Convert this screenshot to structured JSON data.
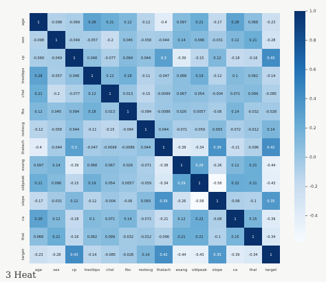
{
  "figure": {
    "caption": "3   Heat"
  },
  "colors": {
    "low": "#f7fbff",
    "high": "#08306b",
    "background": "#f7f7f5"
  },
  "chart_data": {
    "type": "heatmap",
    "title": "",
    "xlabel": "",
    "ylabel": "",
    "categories": [
      "age",
      "sex",
      "cp",
      "trestbps",
      "chol",
      "fbs",
      "restecg",
      "thalach",
      "exang",
      "oldpeak",
      "slope",
      "ca",
      "thal",
      "target"
    ],
    "row_labels": [
      "age",
      "sex",
      "cp",
      "trestbps",
      "chol",
      "fbs",
      "restecg",
      "thalach",
      "exang",
      "oldpeak",
      "slope",
      "ca",
      "thal",
      "target"
    ],
    "matrix": [
      [
        1,
        -0.098,
        -0.069,
        0.28,
        0.21,
        0.12,
        -0.12,
        -0.4,
        0.097,
        0.21,
        -0.17,
        0.28,
        0.068,
        -0.23
      ],
      [
        -0.098,
        1,
        -0.049,
        -0.057,
        -0.2,
        0.045,
        -0.058,
        -0.044,
        0.14,
        0.096,
        -0.031,
        0.12,
        0.21,
        -0.28
      ],
      [
        -0.069,
        -0.049,
        1,
        0.048,
        -0.077,
        0.094,
        0.044,
        0.3,
        -0.39,
        -0.15,
        0.12,
        -0.18,
        -0.16,
        0.43
      ],
      [
        0.28,
        -0.057,
        0.048,
        1,
        0.12,
        0.18,
        -0.11,
        -0.047,
        0.068,
        0.19,
        -0.12,
        0.1,
        0.062,
        -0.14
      ],
      [
        0.21,
        -0.2,
        -0.077,
        0.12,
        1,
        0.013,
        -0.15,
        -0.0099,
        0.067,
        0.054,
        -0.004,
        0.071,
        0.099,
        -0.085
      ],
      [
        0.12,
        0.045,
        0.094,
        0.18,
        0.013,
        1,
        -0.084,
        -0.0086,
        0.026,
        0.0057,
        -0.06,
        0.14,
        -0.032,
        -0.028
      ],
      [
        -0.12,
        -0.058,
        0.044,
        -0.11,
        -0.15,
        -0.084,
        1,
        0.044,
        -0.071,
        -0.059,
        0.093,
        -0.072,
        -0.012,
        0.14
      ],
      [
        -0.4,
        -0.044,
        0.3,
        -0.047,
        -0.0099,
        -0.0086,
        0.044,
        1,
        -0.38,
        -0.34,
        0.39,
        -0.21,
        -0.096,
        0.42
      ],
      [
        0.097,
        0.14,
        -0.39,
        0.068,
        0.067,
        0.026,
        -0.071,
        -0.38,
        1,
        0.29,
        -0.26,
        0.12,
        0.21,
        -0.44
      ],
      [
        0.21,
        0.096,
        -0.15,
        0.19,
        0.054,
        0.0057,
        -0.059,
        -0.34,
        0.29,
        1,
        -0.58,
        0.22,
        0.21,
        -0.43
      ],
      [
        -0.17,
        -0.031,
        0.12,
        -0.12,
        -0.004,
        -0.06,
        0.093,
        0.39,
        -0.26,
        -0.58,
        1,
        -0.08,
        -0.1,
        0.35
      ],
      [
        0.28,
        0.12,
        -0.18,
        0.1,
        0.071,
        0.14,
        -0.072,
        -0.21,
        0.12,
        0.22,
        -0.08,
        1,
        0.15,
        -0.39
      ],
      [
        0.068,
        0.21,
        -0.16,
        0.062,
        0.099,
        -0.032,
        -0.012,
        -0.096,
        0.21,
        0.21,
        -0.1,
        0.15,
        1,
        -0.34
      ],
      [
        -0.23,
        -0.28,
        0.43,
        -0.14,
        -0.085,
        -0.028,
        0.14,
        0.42,
        -0.44,
        -0.43,
        0.35,
        -0.39,
        -0.34,
        1
      ]
    ],
    "colorbar": {
      "range": [
        -0.58,
        1
      ],
      "ticks": [
        "1.0",
        "0.8",
        "0.6",
        "0.4",
        "0.2",
        "0.0",
        "-0.2",
        "-0.4"
      ],
      "tick_values": [
        1.0,
        0.8,
        0.6,
        0.4,
        0.2,
        0.0,
        -0.2,
        -0.4
      ]
    },
    "grid": true,
    "colormap": "Blues",
    "annotated": true
  }
}
